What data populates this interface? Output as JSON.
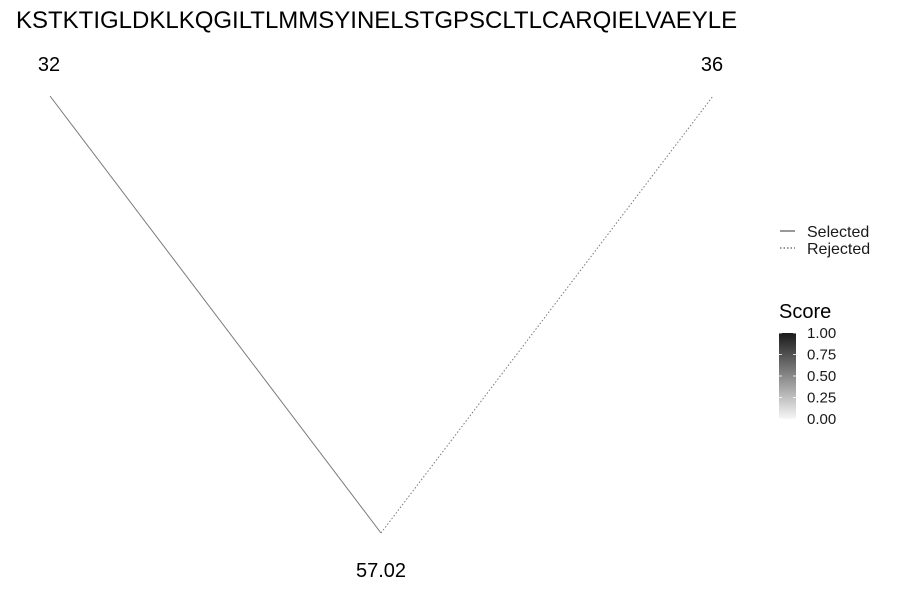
{
  "chart_data": {
    "type": "tree",
    "title": "KSTKTIGLDKLKQGILTLMMSYINELSTGPSCLTLCARQIELVAEYLE",
    "nodes": [
      {
        "id": "left",
        "label": "32"
      },
      {
        "id": "right",
        "label": "36"
      },
      {
        "id": "root",
        "label": "57.02"
      }
    ],
    "edges": [
      {
        "from": "root",
        "to": "left",
        "status": "Selected",
        "score": 0.55
      },
      {
        "from": "root",
        "to": "right",
        "status": "Rejected",
        "score": 0.55
      }
    ],
    "linetype_legend": {
      "entries": [
        {
          "label": "Selected",
          "style": "solid"
        },
        {
          "label": "Rejected",
          "style": "dotted"
        }
      ]
    },
    "color_legend": {
      "title": "Score",
      "range": [
        0,
        1
      ],
      "ticks": [
        "1.00",
        "0.75",
        "0.50",
        "0.25",
        "0.00"
      ],
      "low_color": "#f7f7f7",
      "high_color": "#1a1a1a"
    },
    "edge_color": "#7a7a7a"
  }
}
